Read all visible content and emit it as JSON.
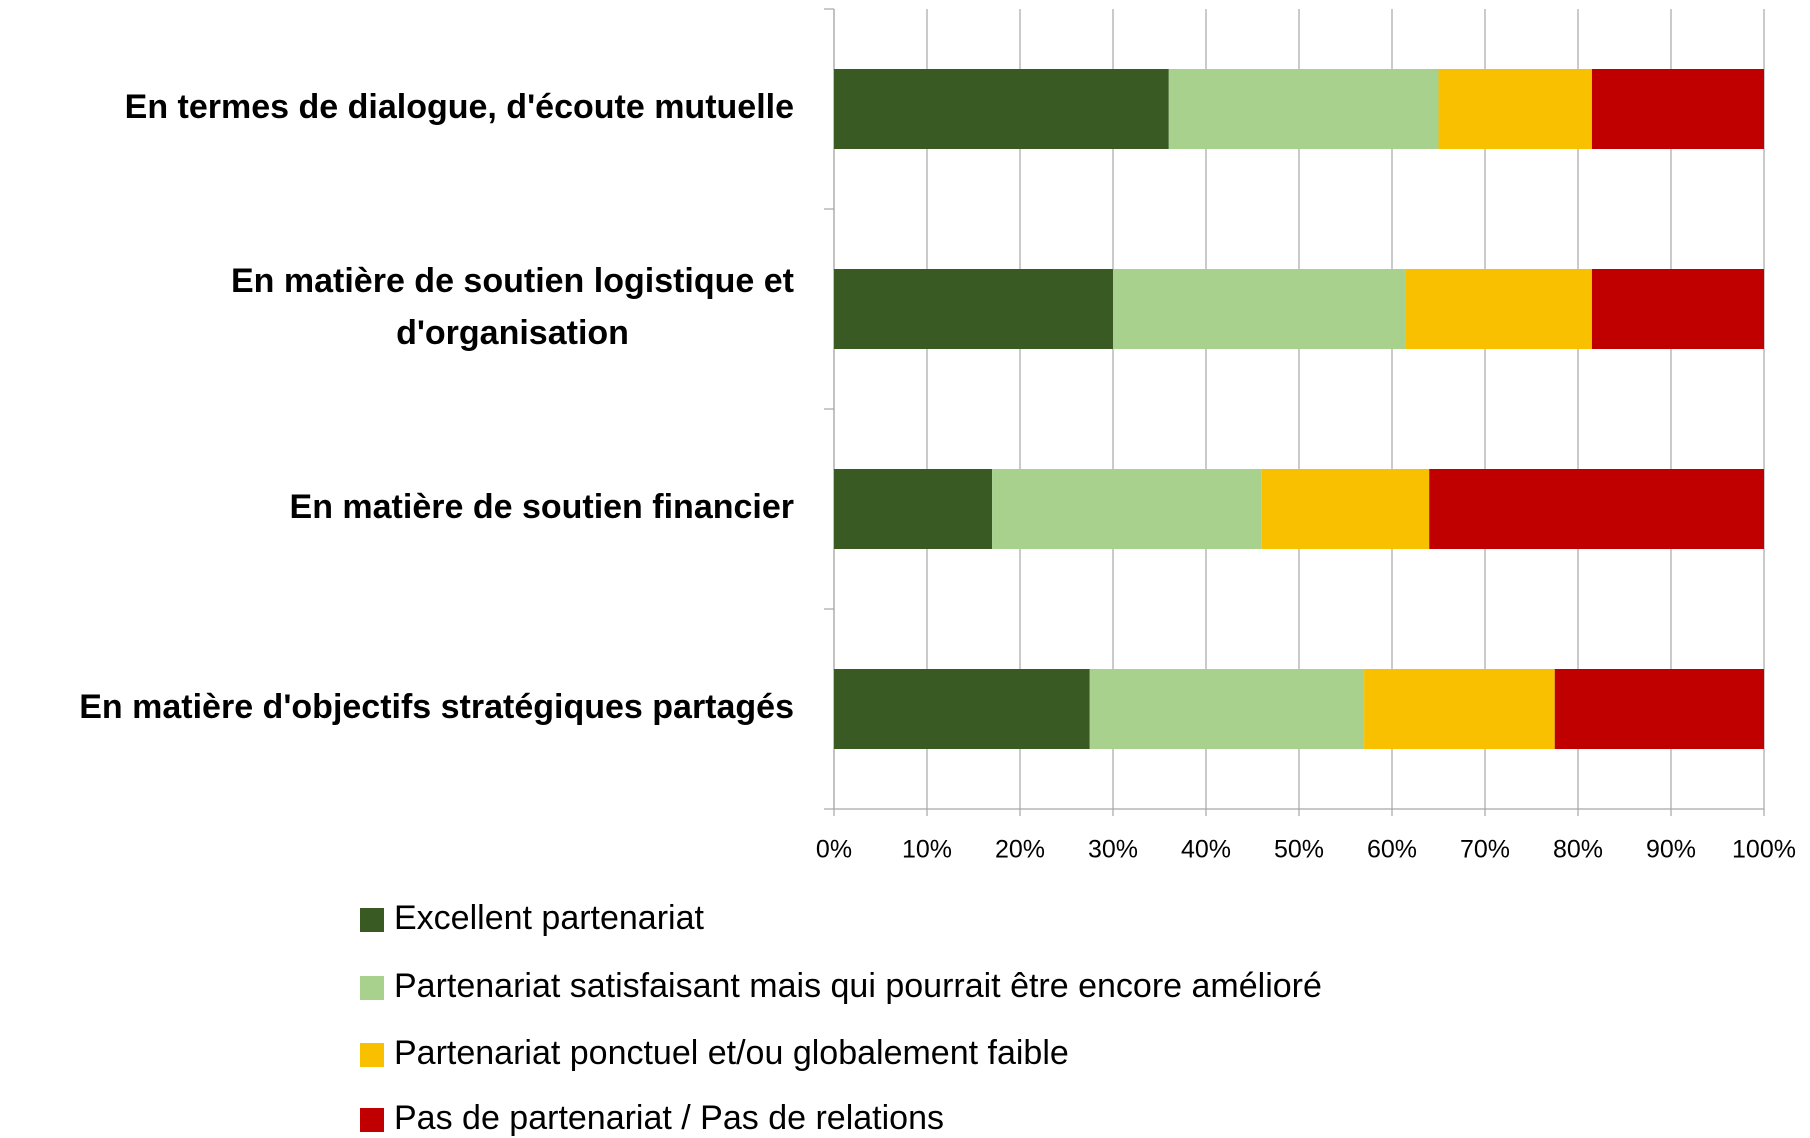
{
  "chart_data": {
    "type": "stacked-barh",
    "categories": [
      "En termes de dialogue, d'écoute mutuelle",
      "En matière de soutien logistique et d'organisation",
      "En matière de soutien financier",
      "En matière d'objectifs stratégiques partagés"
    ],
    "series": [
      {
        "name": "Excellent partenariat",
        "color": "#3a5a24",
        "values": [
          36,
          30,
          17,
          27.5
        ]
      },
      {
        "name": "Partenariat satisfaisant mais qui pourrait être encore amélioré",
        "color": "#a9d18e",
        "values": [
          29,
          31.5,
          29,
          29.5
        ]
      },
      {
        "name": "Partenariat ponctuel et/ou globalement faible",
        "color": "#f9c000",
        "values": [
          16.5,
          20,
          18,
          20.5
        ]
      },
      {
        "name": "Pas de partenariat / Pas de relations",
        "color": "#c00000",
        "values": [
          18.5,
          18.5,
          36,
          22.5
        ]
      }
    ],
    "xlim": [
      0,
      100
    ],
    "xticks": [
      {
        "value": 0,
        "label": "0%"
      },
      {
        "value": 10,
        "label": "10%"
      },
      {
        "value": 20,
        "label": "20%"
      },
      {
        "value": 30,
        "label": "30%"
      },
      {
        "value": 40,
        "label": "40%"
      },
      {
        "value": 50,
        "label": "50%"
      },
      {
        "value": 60,
        "label": "60%"
      },
      {
        "value": 70,
        "label": "70%"
      },
      {
        "value": 80,
        "label": "80%"
      },
      {
        "value": 90,
        "label": "90%"
      },
      {
        "value": 100,
        "label": "100%"
      }
    ],
    "grid": true,
    "legend": "bottom"
  }
}
